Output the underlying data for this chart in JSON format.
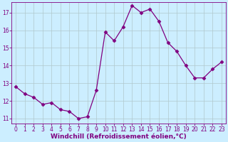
{
  "x": [
    0,
    1,
    2,
    3,
    4,
    5,
    6,
    7,
    8,
    9,
    10,
    11,
    12,
    13,
    14,
    15,
    16,
    17,
    18,
    19,
    20,
    21,
    22,
    23
  ],
  "y": [
    12.8,
    12.4,
    12.2,
    11.8,
    11.9,
    11.5,
    11.4,
    11.0,
    11.1,
    12.6,
    15.9,
    15.4,
    16.2,
    17.4,
    17.0,
    17.2,
    16.5,
    15.3,
    14.8,
    14.0,
    13.3,
    13.3,
    13.8,
    14.2
  ],
  "line_color": "#800080",
  "marker": "D",
  "marker_size": 2.5,
  "bg_color": "#cceeff",
  "grid_color": "#b0c8cc",
  "xlabel": "Windchill (Refroidissement éolien,°C)",
  "xlabel_color": "#800080",
  "tick_color": "#800080",
  "ylim": [
    10.7,
    17.6
  ],
  "xlim": [
    -0.5,
    23.5
  ],
  "yticks": [
    11,
    12,
    13,
    14,
    15,
    16,
    17
  ],
  "xticks": [
    0,
    1,
    2,
    3,
    4,
    5,
    6,
    7,
    8,
    9,
    10,
    11,
    12,
    13,
    14,
    15,
    16,
    17,
    18,
    19,
    20,
    21,
    22,
    23
  ],
  "tick_fontsize": 5.5,
  "xlabel_fontsize": 6.5,
  "xlabel_fontweight": "bold"
}
